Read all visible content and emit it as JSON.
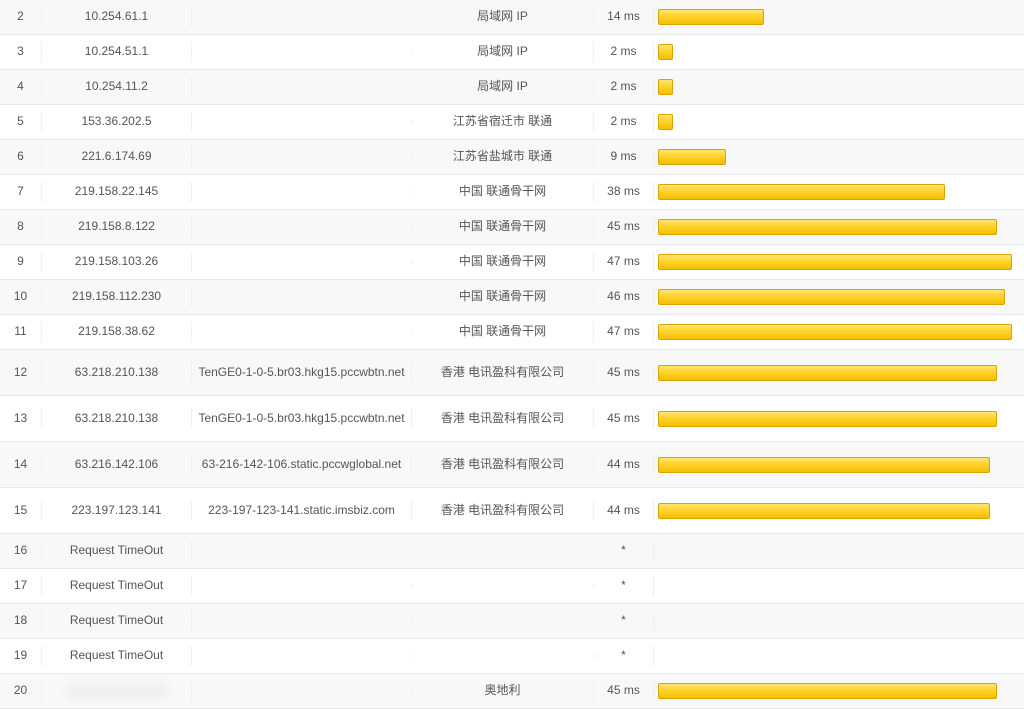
{
  "table": {
    "bar_max_ms": 48,
    "bar_color_gradient": [
      "#ffe56e",
      "#ffd22e",
      "#f3bf00"
    ],
    "bar_border_color": "#d9a300",
    "row_alt_bg": "#f8f8f8",
    "border_color": "#e8e8e8",
    "text_color": "#555555",
    "font_size": 12,
    "columns": [
      "hop",
      "ip",
      "hostname",
      "location",
      "latency",
      "bar"
    ],
    "rows": [
      {
        "hop": "2",
        "ip": "10.254.61.1",
        "host": "",
        "loc": "局域网 IP",
        "ms": "14 ms",
        "bar_ms": 14,
        "alt": true,
        "tall": false,
        "blur_ip": false
      },
      {
        "hop": "3",
        "ip": "10.254.51.1",
        "host": "",
        "loc": "局域网 IP",
        "ms": "2 ms",
        "bar_ms": 2,
        "alt": false,
        "tall": false,
        "blur_ip": false
      },
      {
        "hop": "4",
        "ip": "10.254.11.2",
        "host": "",
        "loc": "局域网 IP",
        "ms": "2 ms",
        "bar_ms": 2,
        "alt": true,
        "tall": false,
        "blur_ip": false
      },
      {
        "hop": "5",
        "ip": "153.36.202.5",
        "host": "",
        "loc": "江苏省宿迁市 联通",
        "ms": "2 ms",
        "bar_ms": 2,
        "alt": false,
        "tall": false,
        "blur_ip": false
      },
      {
        "hop": "6",
        "ip": "221.6.174.69",
        "host": "",
        "loc": "江苏省盐城市 联通",
        "ms": "9 ms",
        "bar_ms": 9,
        "alt": true,
        "tall": false,
        "blur_ip": false
      },
      {
        "hop": "7",
        "ip": "219.158.22.145",
        "host": "",
        "loc": "中国 联通骨干网",
        "ms": "38 ms",
        "bar_ms": 38,
        "alt": false,
        "tall": false,
        "blur_ip": false
      },
      {
        "hop": "8",
        "ip": "219.158.8.122",
        "host": "",
        "loc": "中国 联通骨干网",
        "ms": "45 ms",
        "bar_ms": 45,
        "alt": true,
        "tall": false,
        "blur_ip": false
      },
      {
        "hop": "9",
        "ip": "219.158.103.26",
        "host": "",
        "loc": "中国 联通骨干网",
        "ms": "47 ms",
        "bar_ms": 47,
        "alt": false,
        "tall": false,
        "blur_ip": false
      },
      {
        "hop": "10",
        "ip": "219.158.112.230",
        "host": "",
        "loc": "中国 联通骨干网",
        "ms": "46 ms",
        "bar_ms": 46,
        "alt": true,
        "tall": false,
        "blur_ip": false
      },
      {
        "hop": "11",
        "ip": "219.158.38.62",
        "host": "",
        "loc": "中国 联通骨干网",
        "ms": "47 ms",
        "bar_ms": 47,
        "alt": false,
        "tall": false,
        "blur_ip": false
      },
      {
        "hop": "12",
        "ip": "63.218.210.138",
        "host": "TenGE0-1-0-5.br03.hkg15.pccwbtn.net",
        "loc": "香港 电讯盈科有限公司",
        "ms": "45 ms",
        "bar_ms": 45,
        "alt": true,
        "tall": true,
        "blur_ip": false
      },
      {
        "hop": "13",
        "ip": "63.218.210.138",
        "host": "TenGE0-1-0-5.br03.hkg15.pccwbtn.net",
        "loc": "香港 电讯盈科有限公司",
        "ms": "45 ms",
        "bar_ms": 45,
        "alt": false,
        "tall": true,
        "blur_ip": false
      },
      {
        "hop": "14",
        "ip": "63.216.142.106",
        "host": "63-216-142-106.static.pccwglobal.net",
        "loc": "香港 电讯盈科有限公司",
        "ms": "44 ms",
        "bar_ms": 44,
        "alt": true,
        "tall": true,
        "blur_ip": false
      },
      {
        "hop": "15",
        "ip": "223.197.123.141",
        "host": "223-197-123-141.static.imsbiz.com",
        "loc": "香港 电讯盈科有限公司",
        "ms": "44 ms",
        "bar_ms": 44,
        "alt": false,
        "tall": true,
        "blur_ip": false
      },
      {
        "hop": "16",
        "ip": "Request TimeOut",
        "host": "",
        "loc": "",
        "ms": "*",
        "bar_ms": 0,
        "alt": true,
        "tall": false,
        "blur_ip": false
      },
      {
        "hop": "17",
        "ip": "Request TimeOut",
        "host": "",
        "loc": "",
        "ms": "*",
        "bar_ms": 0,
        "alt": false,
        "tall": false,
        "blur_ip": false
      },
      {
        "hop": "18",
        "ip": "Request TimeOut",
        "host": "",
        "loc": "",
        "ms": "*",
        "bar_ms": 0,
        "alt": true,
        "tall": false,
        "blur_ip": false
      },
      {
        "hop": "19",
        "ip": "Request TimeOut",
        "host": "",
        "loc": "",
        "ms": "*",
        "bar_ms": 0,
        "alt": false,
        "tall": false,
        "blur_ip": false
      },
      {
        "hop": "20",
        "ip": "XXX.XXX.XXX.XXX",
        "host": "",
        "loc": "奥地利",
        "ms": "45 ms",
        "bar_ms": 45,
        "alt": true,
        "tall": false,
        "blur_ip": true
      }
    ]
  }
}
